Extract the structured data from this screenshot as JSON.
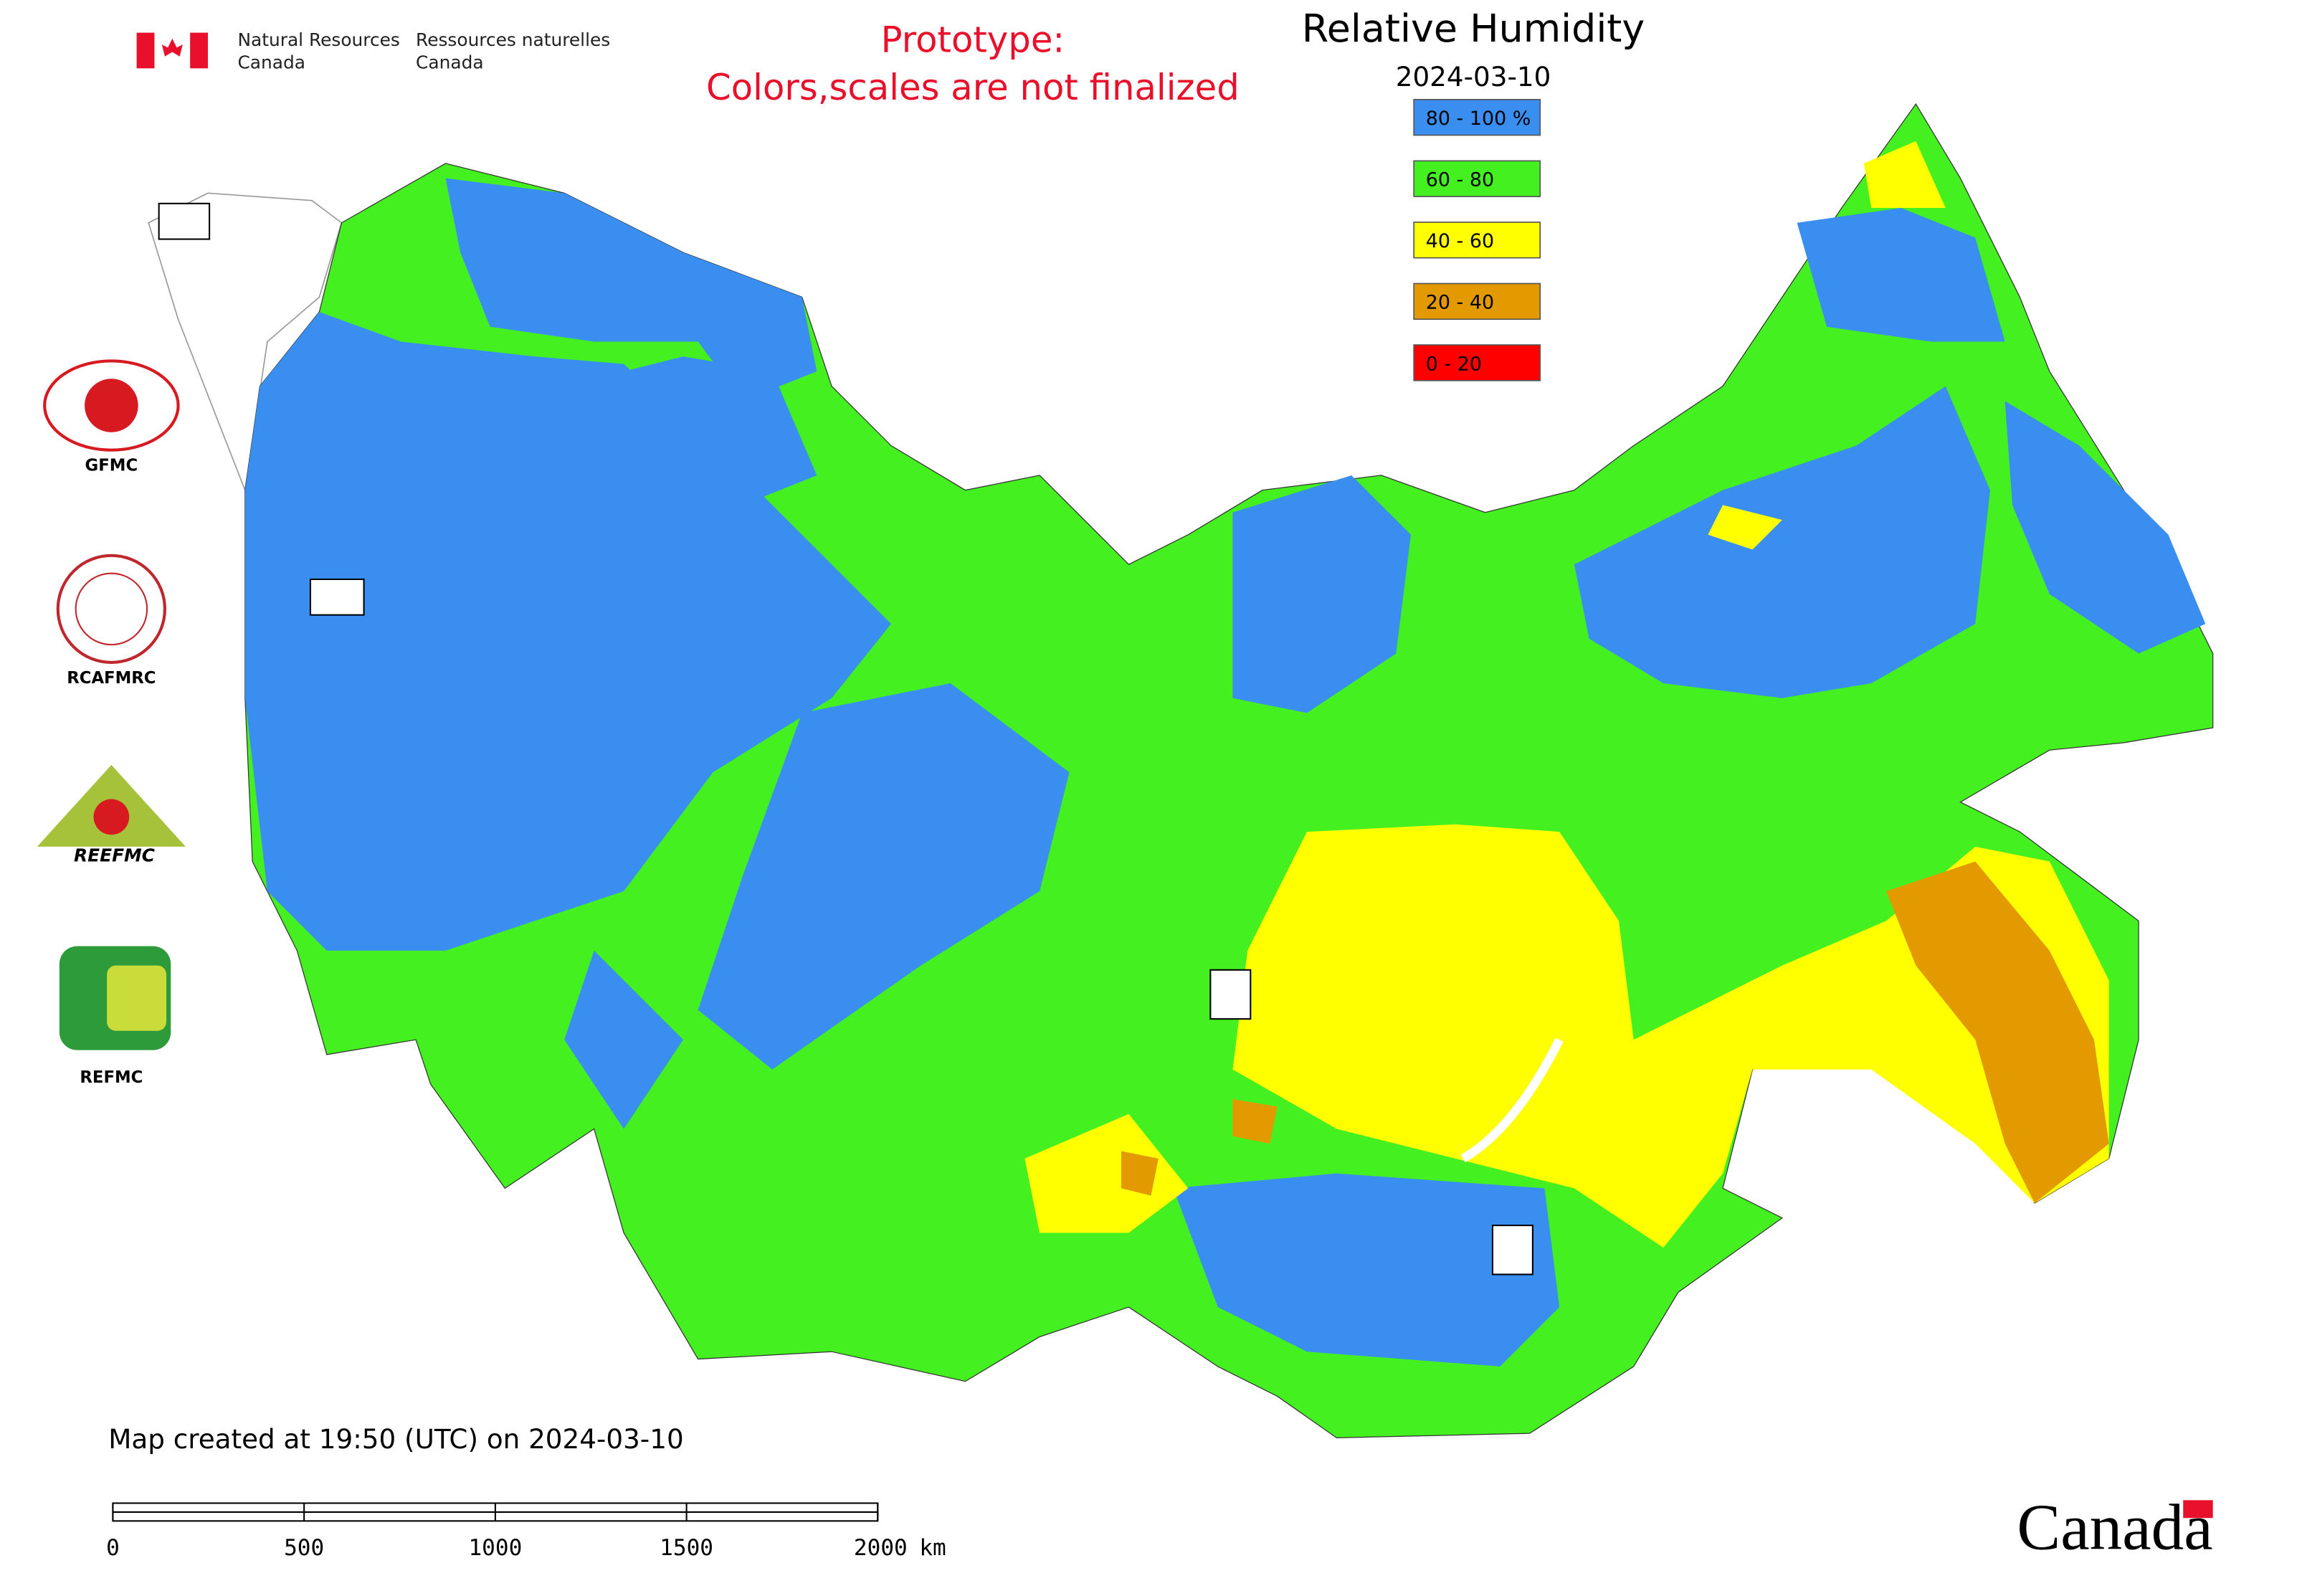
{
  "header": {
    "agency_en": [
      "Natural Resources",
      "Canada"
    ],
    "agency_fr": [
      "Ressources naturelles",
      "Canada"
    ],
    "notice": [
      "Prototype:",
      "Colors,scales are not finalized"
    ]
  },
  "map": {
    "title": "Relative Humidity",
    "date": "2024-03-10",
    "legend": [
      {
        "label": "80 - 100 %",
        "color": "#3a8ef0"
      },
      {
        "label": "60 - 80",
        "color": "#44f020"
      },
      {
        "label": "40 - 60",
        "color": "#ffff00"
      },
      {
        "label": "20 - 40",
        "color": "#e39a00"
      },
      {
        "label": "0 - 20",
        "color": "#ff0000"
      }
    ]
  },
  "logos": [
    "GFMC",
    "RCAFMRC",
    "REEFMC",
    "REFMC"
  ],
  "footer": {
    "created": "Map created at 19:50 (UTC) on 2024-03-10",
    "scale": {
      "ticks": [
        0,
        500,
        1000,
        1500,
        2000
      ],
      "unit": "km"
    },
    "wordmark": "Canada"
  }
}
